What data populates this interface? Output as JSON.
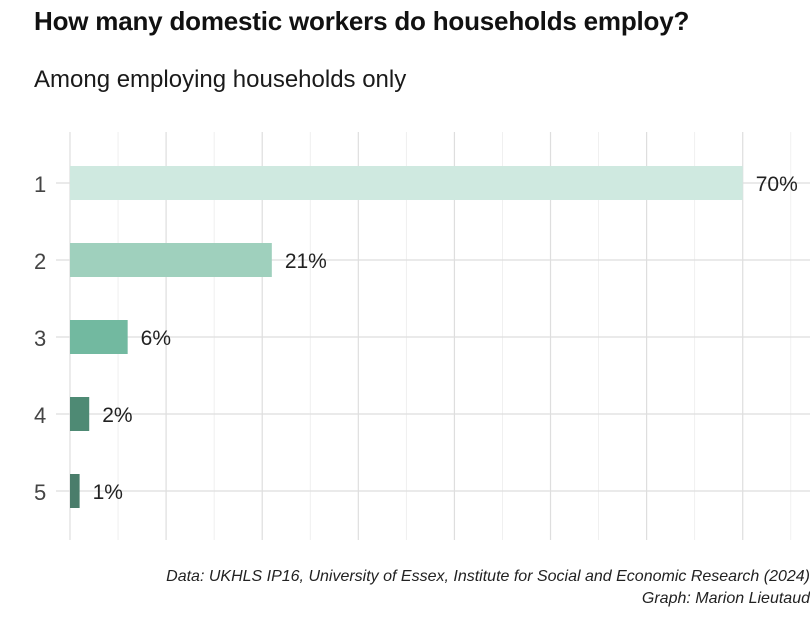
{
  "chart_data": {
    "type": "bar",
    "orientation": "horizontal",
    "title": "How many domestic workers do households employ?",
    "subtitle": "Among employing households only",
    "categories": [
      "1",
      "2",
      "3",
      "4",
      "5"
    ],
    "values": [
      70,
      21,
      6,
      2,
      1
    ],
    "data_labels": [
      "70%",
      "21%",
      "6%",
      "2%",
      "1%"
    ],
    "xlim": [
      0,
      77
    ],
    "grid": true,
    "legend": "none",
    "colors": [
      "#cfe9e0",
      "#9fd0bd",
      "#72b9a0",
      "#4e8a74",
      "#4a7d6b"
    ],
    "caption": [
      "Data: UKHLS IP16, University of Essex, Institute for Social and Economic Research (2024)",
      "Graph: Marion Lieutaud"
    ]
  }
}
